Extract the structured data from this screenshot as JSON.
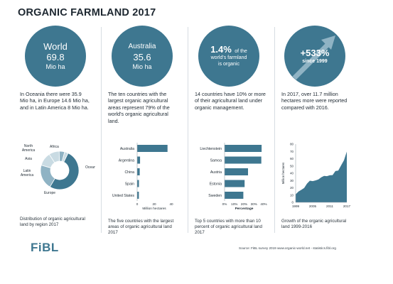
{
  "title": "ORGANIC FARMLAND 2017",
  "panels": [
    {
      "circle_line1": "World",
      "circle_line2": "69.8",
      "circle_line3": "Mio ha",
      "description": "In Oceania there were 35.9 Mio ha, in Europe 14.6 Mio ha, and in Latin America 8 Mio ha.",
      "caption": "Distribution of organic agricultural land by region 2017"
    },
    {
      "circle_line1": "Australia",
      "circle_line2": "35.6",
      "circle_line3": "Mio ha",
      "description": "The ten countries with the largest organic agricultural areas represent 79% of the world's organic agricultural land.",
      "caption": "The five countries with the largest areas of organic agricultural land 2017"
    },
    {
      "circle_big": "1.4%",
      "circle_line1": "of the",
      "circle_line2": "world's farmland",
      "circle_line3": "is organic",
      "description": "14 countries have 10% or more of their agricultural land under organic management.",
      "caption": "Top 5 countries with more than 10 percent of organic agricultural land 2017"
    },
    {
      "circle_big": "+533%",
      "circle_line1": "since 1999",
      "description": "In 2017, over 11.7 million hectares more were reported compared with 2016.",
      "caption": "Growth of the organic agricultural land 1999-2016"
    }
  ],
  "colors": {
    "accent": "#3e7790",
    "light": "#8fb3c4",
    "pale": "#c9dbe3",
    "text": "#1f2a33"
  },
  "footer": {
    "logo": "FiBL",
    "source": "Source: FiBL survey 2019 www.organic-world.net - statistics.fibl.org"
  },
  "chart_data": [
    {
      "type": "pie",
      "style": "donut",
      "categories": [
        "Oceania",
        "Europe",
        "Latin America",
        "Asia",
        "North America",
        "Africa"
      ],
      "values": [
        35.9,
        14.6,
        8.0,
        6.1,
        3.2,
        2.1
      ]
    },
    {
      "type": "bar",
      "orientation": "horizontal",
      "categories": [
        "Australia",
        "Argentina",
        "China",
        "Spain",
        "United States"
      ],
      "values": [
        35.6,
        3.4,
        3.0,
        2.1,
        2.0
      ],
      "xlabel": "Million hectares",
      "xticks": [
        "0",
        "20",
        "40"
      ],
      "xlim": [
        0,
        40
      ]
    },
    {
      "type": "bar",
      "orientation": "horizontal",
      "categories": [
        "Liechtenstein",
        "Samoa",
        "Austria",
        "Estonia",
        "Sweden"
      ],
      "values": [
        37.9,
        37.6,
        24.0,
        20.5,
        19.2
      ],
      "xlabel": "Percentage",
      "xticks": [
        "0%",
        "10%",
        "20%",
        "30%",
        "40%"
      ],
      "xlim": [
        0,
        40
      ]
    },
    {
      "type": "area",
      "x": [
        1999,
        2000,
        2001,
        2002,
        2003,
        2004,
        2005,
        2006,
        2007,
        2008,
        2009,
        2010,
        2011,
        2012,
        2013,
        2014,
        2015,
        2016,
        2017
      ],
      "values": [
        11,
        14.9,
        17.2,
        19.8,
        25.7,
        29.8,
        29.2,
        30.1,
        31.5,
        34.4,
        36.3,
        36.0,
        37.2,
        37.5,
        43.1,
        43.7,
        50.9,
        57.8,
        69.8
      ],
      "ylabel": "Million hectares",
      "ylim": [
        0,
        80
      ],
      "yticks": [
        "0",
        "10",
        "20",
        "30",
        "40",
        "50",
        "60",
        "70",
        "80"
      ],
      "xticks": [
        "1999",
        "2005",
        "2011",
        "2017"
      ]
    }
  ]
}
